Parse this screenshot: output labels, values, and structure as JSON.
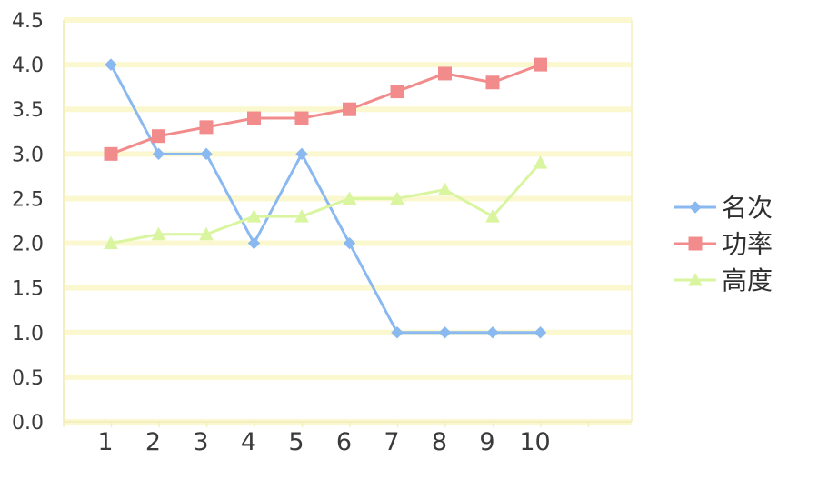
{
  "chart_data": {
    "type": "line",
    "categories": [
      "1",
      "2",
      "3",
      "4",
      "5",
      "6",
      "7",
      "8",
      "9",
      "10"
    ],
    "ylim": [
      0,
      4.5
    ],
    "yticks": [
      "0.0",
      "0.5",
      "1.0",
      "1.5",
      "2.0",
      "2.5",
      "3.0",
      "3.5",
      "4.0",
      "4.5"
    ],
    "grid": true,
    "legend_position": "right",
    "series": [
      {
        "name": "名次",
        "values": [
          4,
          3,
          3,
          2,
          3,
          2,
          1,
          1,
          1,
          1
        ],
        "color": "#8ab8f0",
        "marker": "diamond"
      },
      {
        "name": "功率",
        "values": [
          3,
          3.2,
          3.3,
          3.4,
          3.4,
          3.5,
          3.7,
          3.9,
          3.8,
          4
        ],
        "color": "#f28c8c",
        "marker": "square"
      },
      {
        "name": "高度",
        "values": [
          2,
          2.1,
          2.1,
          2.3,
          2.3,
          2.5,
          2.5,
          2.6,
          2.3,
          2.9
        ],
        "color": "#d9f5a0",
        "marker": "triangle"
      }
    ],
    "colors": {
      "grid": "#fbf8d0",
      "axis": "#f3efbf"
    }
  }
}
